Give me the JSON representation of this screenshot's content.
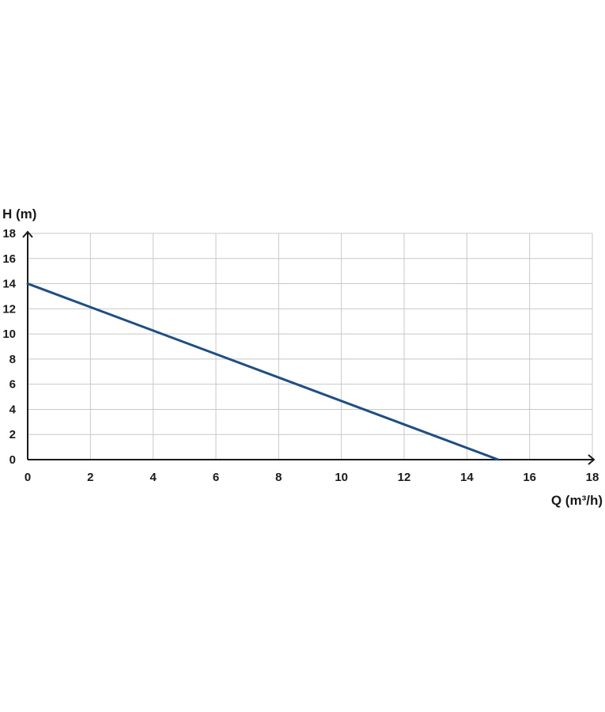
{
  "chart_data": {
    "type": "line",
    "xlabel": "Q (m³/h)",
    "ylabel": "H (m)",
    "xlim": [
      0,
      18
    ],
    "ylim": [
      0,
      18
    ],
    "x_ticks": [
      "0",
      "2",
      "4",
      "6",
      "8",
      "10",
      "12",
      "14",
      "16",
      "18"
    ],
    "y_ticks": [
      "0",
      "2",
      "4",
      "6",
      "8",
      "10",
      "12",
      "14",
      "16",
      "18"
    ],
    "grid": true,
    "series": [
      {
        "color": "#1f4e85",
        "x": [
          0,
          15
        ],
        "y": [
          14,
          0
        ]
      }
    ],
    "colors": {
      "grid": "#c8c8c8",
      "axis": "#1a1a1a",
      "text": "#1a1a1a"
    }
  }
}
